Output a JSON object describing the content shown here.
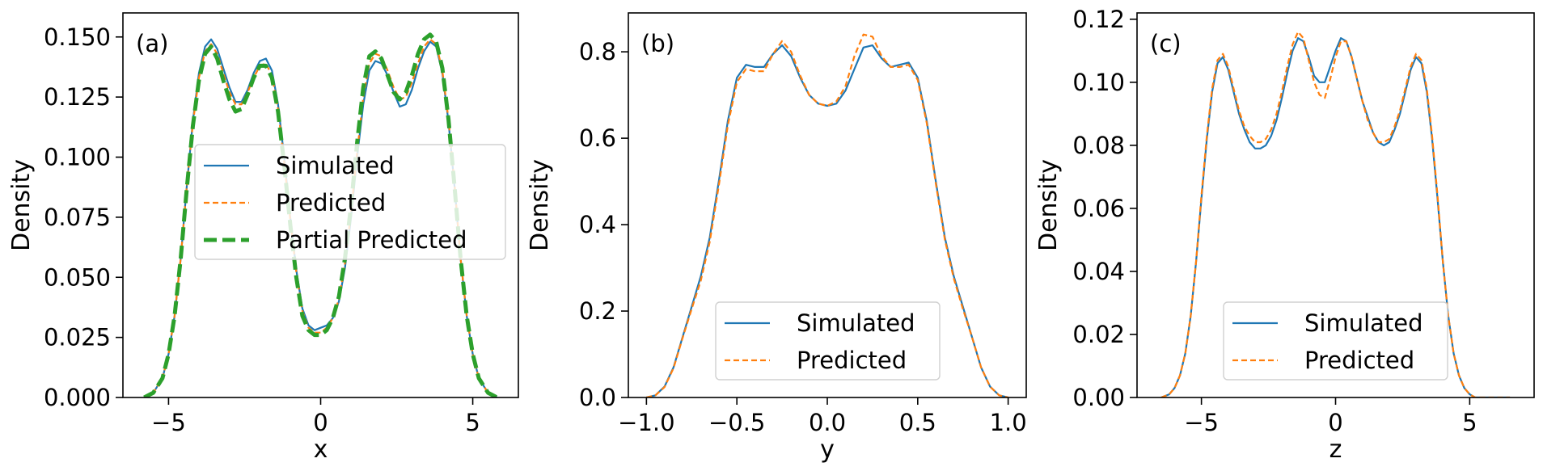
{
  "chart_data": [
    {
      "type": "line",
      "panel_label": "(a)",
      "xlabel": "x",
      "ylabel": "Density",
      "xlim": [
        -6.5,
        6.5
      ],
      "ylim": [
        0,
        0.16
      ],
      "xticks": [
        -5,
        0,
        5
      ],
      "xtick_labels": [
        "−5",
        "0",
        "5"
      ],
      "yticks": [
        0,
        0.025,
        0.05,
        0.075,
        0.1,
        0.125,
        0.15
      ],
      "ytick_labels": [
        "0.000",
        "0.025",
        "0.050",
        "0.075",
        "0.100",
        "0.125",
        "0.150"
      ],
      "grid": false,
      "legend_position": "center-right",
      "series": [
        {
          "name": "Simulated",
          "color": "#1f77b4",
          "style": "solid",
          "x": [
            -5.8,
            -5.5,
            -5.2,
            -5.0,
            -4.8,
            -4.6,
            -4.4,
            -4.2,
            -4.0,
            -3.8,
            -3.6,
            -3.4,
            -3.2,
            -3.0,
            -2.8,
            -2.6,
            -2.4,
            -2.2,
            -2.0,
            -1.8,
            -1.6,
            -1.4,
            -1.2,
            -1.0,
            -0.8,
            -0.6,
            -0.4,
            -0.2,
            0.0,
            0.2,
            0.4,
            0.6,
            0.8,
            1.0,
            1.2,
            1.4,
            1.6,
            1.8,
            2.0,
            2.2,
            2.4,
            2.6,
            2.8,
            3.0,
            3.2,
            3.4,
            3.6,
            3.8,
            4.0,
            4.2,
            4.4,
            4.6,
            4.8,
            5.0,
            5.2,
            5.5,
            5.8
          ],
          "y": [
            0.0,
            0.002,
            0.008,
            0.018,
            0.034,
            0.058,
            0.088,
            0.115,
            0.135,
            0.146,
            0.149,
            0.145,
            0.137,
            0.129,
            0.123,
            0.123,
            0.128,
            0.135,
            0.14,
            0.141,
            0.136,
            0.122,
            0.1,
            0.075,
            0.053,
            0.037,
            0.03,
            0.028,
            0.029,
            0.03,
            0.033,
            0.04,
            0.054,
            0.075,
            0.1,
            0.122,
            0.136,
            0.14,
            0.139,
            0.134,
            0.127,
            0.121,
            0.122,
            0.128,
            0.137,
            0.144,
            0.148,
            0.146,
            0.135,
            0.115,
            0.088,
            0.058,
            0.034,
            0.018,
            0.008,
            0.002,
            0.0
          ]
        },
        {
          "name": "Predicted",
          "color": "#ff7f0e",
          "style": "dashed",
          "x": [
            -5.8,
            -5.5,
            -5.2,
            -5.0,
            -4.8,
            -4.6,
            -4.4,
            -4.2,
            -4.0,
            -3.8,
            -3.6,
            -3.4,
            -3.2,
            -3.0,
            -2.8,
            -2.6,
            -2.4,
            -2.2,
            -2.0,
            -1.8,
            -1.6,
            -1.4,
            -1.2,
            -1.0,
            -0.8,
            -0.6,
            -0.4,
            -0.2,
            0.0,
            0.2,
            0.4,
            0.6,
            0.8,
            1.0,
            1.2,
            1.4,
            1.6,
            1.8,
            2.0,
            2.2,
            2.4,
            2.6,
            2.8,
            3.0,
            3.2,
            3.4,
            3.6,
            3.8,
            4.0,
            4.2,
            4.4,
            4.6,
            4.8,
            5.0,
            5.2,
            5.5,
            5.8
          ],
          "y": [
            0.0,
            0.002,
            0.008,
            0.018,
            0.034,
            0.058,
            0.088,
            0.114,
            0.133,
            0.144,
            0.147,
            0.143,
            0.135,
            0.127,
            0.122,
            0.122,
            0.127,
            0.133,
            0.138,
            0.139,
            0.134,
            0.12,
            0.098,
            0.074,
            0.052,
            0.036,
            0.029,
            0.027,
            0.027,
            0.029,
            0.033,
            0.041,
            0.056,
            0.077,
            0.102,
            0.125,
            0.139,
            0.143,
            0.142,
            0.136,
            0.129,
            0.124,
            0.125,
            0.131,
            0.139,
            0.146,
            0.149,
            0.147,
            0.136,
            0.116,
            0.089,
            0.058,
            0.034,
            0.018,
            0.008,
            0.002,
            0.0
          ]
        },
        {
          "name": " Partial Predicted",
          "color": "#2ca02c",
          "style": "dashed-thick",
          "x": [
            -5.8,
            -5.5,
            -5.2,
            -5.0,
            -4.8,
            -4.6,
            -4.4,
            -4.2,
            -4.0,
            -3.8,
            -3.6,
            -3.4,
            -3.2,
            -3.0,
            -2.8,
            -2.6,
            -2.4,
            -2.2,
            -2.0,
            -1.8,
            -1.6,
            -1.4,
            -1.2,
            -1.0,
            -0.8,
            -0.6,
            -0.4,
            -0.2,
            0.0,
            0.2,
            0.4,
            0.6,
            0.8,
            1.0,
            1.2,
            1.4,
            1.6,
            1.8,
            2.0,
            2.2,
            2.4,
            2.6,
            2.8,
            3.0,
            3.2,
            3.4,
            3.6,
            3.8,
            4.0,
            4.2,
            4.4,
            4.6,
            4.8,
            5.0,
            5.2,
            5.5,
            5.8
          ],
          "y": [
            0.0,
            0.002,
            0.008,
            0.018,
            0.034,
            0.058,
            0.087,
            0.113,
            0.132,
            0.143,
            0.146,
            0.141,
            0.132,
            0.124,
            0.119,
            0.12,
            0.126,
            0.133,
            0.138,
            0.138,
            0.133,
            0.119,
            0.097,
            0.072,
            0.05,
            0.034,
            0.028,
            0.026,
            0.026,
            0.028,
            0.033,
            0.042,
            0.058,
            0.08,
            0.106,
            0.129,
            0.142,
            0.144,
            0.141,
            0.134,
            0.127,
            0.124,
            0.127,
            0.134,
            0.143,
            0.149,
            0.151,
            0.148,
            0.137,
            0.116,
            0.088,
            0.058,
            0.034,
            0.018,
            0.008,
            0.002,
            0.0
          ]
        }
      ]
    },
    {
      "type": "line",
      "panel_label": "(b)",
      "xlabel": "y",
      "ylabel": "Density",
      "xlim": [
        -1.1,
        1.1
      ],
      "ylim": [
        0,
        0.89
      ],
      "xticks": [
        -1.0,
        -0.5,
        0.0,
        0.5,
        1.0
      ],
      "xtick_labels": [
        "−1.0",
        "−0.5",
        "0.0",
        "0.5",
        "1.0"
      ],
      "yticks": [
        0,
        0.2,
        0.4,
        0.6,
        0.8
      ],
      "ytick_labels": [
        "0.0",
        "0.2",
        "0.4",
        "0.6",
        "0.8"
      ],
      "grid": false,
      "legend_position": "lower-center",
      "series": [
        {
          "name": "Simulated",
          "color": "#1f77b4",
          "style": "solid",
          "x": [
            -1.0,
            -0.95,
            -0.9,
            -0.85,
            -0.8,
            -0.75,
            -0.7,
            -0.65,
            -0.6,
            -0.55,
            -0.5,
            -0.45,
            -0.4,
            -0.35,
            -0.3,
            -0.25,
            -0.2,
            -0.15,
            -0.1,
            -0.05,
            0.0,
            0.05,
            0.1,
            0.15,
            0.2,
            0.25,
            0.3,
            0.35,
            0.4,
            0.45,
            0.5,
            0.55,
            0.6,
            0.65,
            0.7,
            0.75,
            0.8,
            0.85,
            0.9,
            0.95,
            1.0
          ],
          "y": [
            0.0,
            0.005,
            0.025,
            0.07,
            0.14,
            0.21,
            0.28,
            0.37,
            0.5,
            0.64,
            0.74,
            0.77,
            0.765,
            0.765,
            0.795,
            0.815,
            0.79,
            0.74,
            0.7,
            0.68,
            0.675,
            0.68,
            0.71,
            0.76,
            0.81,
            0.815,
            0.785,
            0.765,
            0.77,
            0.775,
            0.74,
            0.64,
            0.5,
            0.37,
            0.28,
            0.21,
            0.14,
            0.07,
            0.025,
            0.005,
            0.0
          ]
        },
        {
          "name": "Predicted",
          "color": "#ff7f0e",
          "style": "dashed",
          "x": [
            -1.0,
            -0.95,
            -0.9,
            -0.85,
            -0.8,
            -0.75,
            -0.7,
            -0.65,
            -0.6,
            -0.55,
            -0.5,
            -0.45,
            -0.4,
            -0.35,
            -0.3,
            -0.25,
            -0.2,
            -0.15,
            -0.1,
            -0.05,
            0.0,
            0.05,
            0.1,
            0.15,
            0.2,
            0.25,
            0.3,
            0.35,
            0.4,
            0.45,
            0.5,
            0.55,
            0.6,
            0.65,
            0.7,
            0.75,
            0.8,
            0.85,
            0.9,
            0.95,
            1.0
          ],
          "y": [
            0.0,
            0.005,
            0.024,
            0.068,
            0.138,
            0.205,
            0.27,
            0.36,
            0.49,
            0.63,
            0.73,
            0.76,
            0.755,
            0.755,
            0.795,
            0.825,
            0.8,
            0.745,
            0.7,
            0.68,
            0.675,
            0.685,
            0.72,
            0.79,
            0.84,
            0.835,
            0.79,
            0.765,
            0.765,
            0.77,
            0.735,
            0.635,
            0.495,
            0.365,
            0.275,
            0.205,
            0.14,
            0.07,
            0.025,
            0.005,
            0.0
          ]
        }
      ]
    },
    {
      "type": "line",
      "panel_label": "(c)",
      "xlabel": "z",
      "ylabel": "Density",
      "xlim": [
        -7.4,
        7.4
      ],
      "ylim": [
        0,
        0.122
      ],
      "xticks": [
        -5,
        0,
        5
      ],
      "xtick_labels": [
        "−5",
        "0",
        "5"
      ],
      "yticks": [
        0,
        0.02,
        0.04,
        0.06,
        0.08,
        0.1,
        0.12
      ],
      "ytick_labels": [
        "0.00",
        "0.02",
        "0.04",
        "0.06",
        "0.08",
        "0.10",
        "0.12"
      ],
      "grid": false,
      "legend_position": "lower-center",
      "series": [
        {
          "name": "Simulated",
          "color": "#1f77b4",
          "style": "solid",
          "x": [
            -6.5,
            -6.2,
            -6.0,
            -5.8,
            -5.6,
            -5.4,
            -5.2,
            -5.0,
            -4.8,
            -4.6,
            -4.4,
            -4.2,
            -4.0,
            -3.8,
            -3.6,
            -3.4,
            -3.2,
            -3.0,
            -2.8,
            -2.6,
            -2.4,
            -2.2,
            -2.0,
            -1.8,
            -1.6,
            -1.4,
            -1.2,
            -1.0,
            -0.8,
            -0.6,
            -0.4,
            -0.2,
            0.0,
            0.2,
            0.4,
            0.6,
            0.8,
            1.0,
            1.2,
            1.4,
            1.6,
            1.8,
            2.0,
            2.2,
            2.4,
            2.6,
            2.8,
            3.0,
            3.2,
            3.4,
            3.6,
            3.8,
            4.0,
            4.2,
            4.4,
            4.6,
            4.8,
            5.0,
            5.2,
            5.4,
            5.6,
            5.8,
            6.0,
            6.2,
            6.5
          ],
          "y": [
            0.0,
            0.001,
            0.003,
            0.007,
            0.014,
            0.026,
            0.043,
            0.063,
            0.082,
            0.097,
            0.106,
            0.108,
            0.104,
            0.097,
            0.09,
            0.085,
            0.081,
            0.079,
            0.079,
            0.08,
            0.083,
            0.088,
            0.095,
            0.103,
            0.11,
            0.114,
            0.113,
            0.108,
            0.102,
            0.1,
            0.1,
            0.105,
            0.11,
            0.114,
            0.113,
            0.108,
            0.101,
            0.094,
            0.089,
            0.084,
            0.081,
            0.08,
            0.081,
            0.085,
            0.09,
            0.097,
            0.104,
            0.108,
            0.106,
            0.097,
            0.082,
            0.063,
            0.043,
            0.026,
            0.014,
            0.007,
            0.003,
            0.001,
            0.0,
            0.0,
            0.0,
            0.0,
            0.0,
            0.0,
            0.0
          ]
        },
        {
          "name": "Predicted",
          "color": "#ff7f0e",
          "style": "dashed",
          "x": [
            -6.5,
            -6.2,
            -6.0,
            -5.8,
            -5.6,
            -5.4,
            -5.2,
            -5.0,
            -4.8,
            -4.6,
            -4.4,
            -4.2,
            -4.0,
            -3.8,
            -3.6,
            -3.4,
            -3.2,
            -3.0,
            -2.8,
            -2.6,
            -2.4,
            -2.2,
            -2.0,
            -1.8,
            -1.6,
            -1.4,
            -1.2,
            -1.0,
            -0.8,
            -0.6,
            -0.4,
            -0.2,
            0.0,
            0.2,
            0.4,
            0.6,
            0.8,
            1.0,
            1.2,
            1.4,
            1.6,
            1.8,
            2.0,
            2.2,
            2.4,
            2.6,
            2.8,
            3.0,
            3.2,
            3.4,
            3.6,
            3.8,
            4.0,
            4.2,
            4.4,
            4.6,
            4.8,
            5.0,
            5.2,
            5.4,
            5.6,
            5.8,
            6.0,
            6.2,
            6.5
          ],
          "y": [
            0.0,
            0.001,
            0.003,
            0.007,
            0.014,
            0.026,
            0.043,
            0.064,
            0.083,
            0.098,
            0.107,
            0.109,
            0.105,
            0.098,
            0.091,
            0.086,
            0.083,
            0.081,
            0.081,
            0.082,
            0.085,
            0.09,
            0.097,
            0.105,
            0.112,
            0.116,
            0.114,
            0.107,
            0.1,
            0.096,
            0.095,
            0.101,
            0.108,
            0.113,
            0.113,
            0.108,
            0.101,
            0.094,
            0.088,
            0.084,
            0.081,
            0.081,
            0.082,
            0.086,
            0.091,
            0.098,
            0.105,
            0.109,
            0.107,
            0.098,
            0.083,
            0.064,
            0.043,
            0.026,
            0.014,
            0.007,
            0.003,
            0.001,
            0.0,
            0.0,
            0.0,
            0.0,
            0.0,
            0.0,
            0.0
          ]
        }
      ]
    }
  ]
}
